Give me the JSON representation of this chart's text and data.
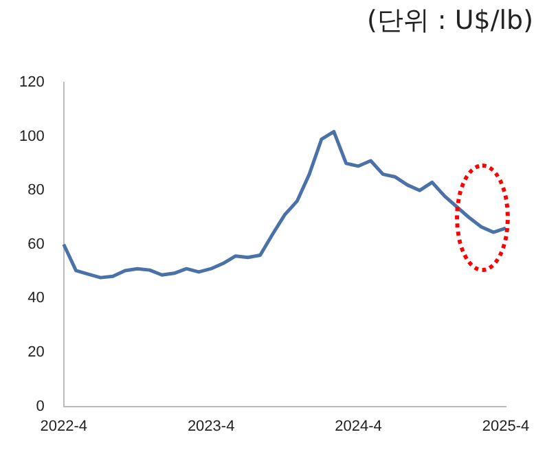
{
  "chart_data": {
    "type": "line",
    "annotations": [
      "(단위 : U$/lb)"
    ],
    "categories": [
      "2022-4",
      null,
      null,
      null,
      null,
      null,
      null,
      null,
      null,
      null,
      null,
      null,
      "2023-4",
      null,
      null,
      null,
      null,
      null,
      null,
      null,
      null,
      null,
      null,
      null,
      "2024-4",
      null,
      null,
      null,
      null,
      null,
      null,
      null,
      null,
      null,
      null,
      null,
      "2025-4"
    ],
    "series": [
      {
        "color": "#4a72a8",
        "values": [
          60,
          50.3,
          49,
          47.7,
          48.2,
          50.3,
          51,
          50.5,
          48.7,
          49.3,
          51,
          49.8,
          51,
          53,
          55.7,
          55.2,
          56,
          63.7,
          71,
          76,
          86,
          99,
          101.8,
          90,
          89,
          91,
          86,
          85,
          82,
          80,
          83,
          78,
          74,
          70,
          66.5,
          64.5,
          66
        ]
      }
    ],
    "ylim": [
      0,
      120
    ],
    "yticks": [
      0,
      20,
      40,
      60,
      80,
      100,
      120
    ],
    "grid": false,
    "legend": false,
    "marker": "none",
    "line_style": "solid"
  }
}
